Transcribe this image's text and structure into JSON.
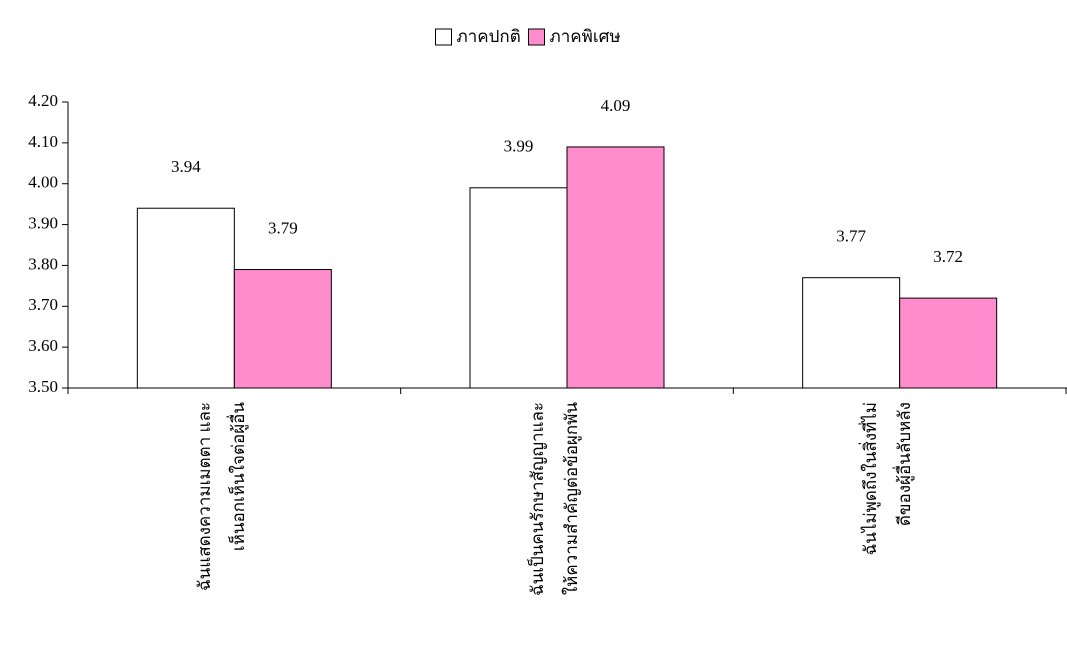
{
  "chart_data": {
    "type": "bar",
    "categories": [
      "ฉันแสดงความเมตตา และ\nเห็นอกเห็นใจต่อผู้อื่น",
      "ฉันเป็นคนรักษาสัญญาและ\nให้ความสำคัญต่อข้อผูกพัน",
      "ฉันไม่พูดถึงในสิ่งที่ไม่\nดีของผู้อื่นลับหลัง"
    ],
    "series": [
      {
        "name": "ภาคปกติ",
        "color": "#ffffff",
        "values": [
          3.94,
          3.99,
          3.77
        ]
      },
      {
        "name": "ภาคพิเศษ",
        "color": "#ff8ccc",
        "values": [
          3.79,
          4.09,
          3.72
        ]
      }
    ],
    "ylim": [
      3.5,
      4.2
    ],
    "yticks": [
      {
        "value": 3.5,
        "label": "3.50"
      },
      {
        "value": 3.6,
        "label": "3.60"
      },
      {
        "value": 3.7,
        "label": "3.70"
      },
      {
        "value": 3.8,
        "label": "3.80"
      },
      {
        "value": 3.9,
        "label": "3.90"
      },
      {
        "value": 4.0,
        "label": "4.00"
      },
      {
        "value": 4.1,
        "label": "4.10"
      },
      {
        "value": 4.2,
        "label": "4.20"
      }
    ],
    "grid": false,
    "legend": "top"
  }
}
